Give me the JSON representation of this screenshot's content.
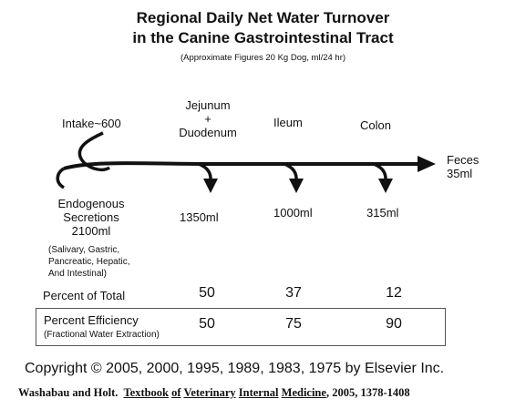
{
  "title_line1": "Regional Daily Net Water Turnover",
  "title_line2": "in the Canine Gastrointestinal Tract",
  "subtitle": "(Approximate Figures 20 Kg Dog, ml/24 hr)",
  "intake": "Intake~600",
  "segments": {
    "jejunum_duodenum": [
      "Jejunum",
      "+",
      "Duodenum"
    ],
    "ileum": "Ileum",
    "colon": "Colon"
  },
  "feces": [
    "Feces",
    "35ml"
  ],
  "absorbed": {
    "jejunum_duodenum": "1350ml",
    "ileum": "1000ml",
    "colon": "315ml"
  },
  "endogenous": {
    "lines": [
      "Endogenous",
      "Secretions",
      "2100ml"
    ],
    "detail": [
      "(Salivary, Gastric,",
      "Pancreatic, Hepatic,",
      "And Intestinal)"
    ]
  },
  "percent_total": {
    "label": "Percent of Total",
    "values": [
      "50",
      "37",
      "12"
    ]
  },
  "percent_efficiency": {
    "label": "Percent Efficiency",
    "sublabel": "(Fractional Water Extraction)",
    "values": [
      "50",
      "75",
      "90"
    ]
  },
  "copyright": "Copyright © 2005, 2000, 1995, 1989, 1983, 1975 by Elsevier Inc.",
  "citation": {
    "authors": "Washabau and Holt.",
    "w1": "Textbook",
    "w2": "of",
    "w3": "Veterinary",
    "w4": "Internal",
    "w5": "Medicine",
    "rest": ", 2005, 1378-1408"
  }
}
